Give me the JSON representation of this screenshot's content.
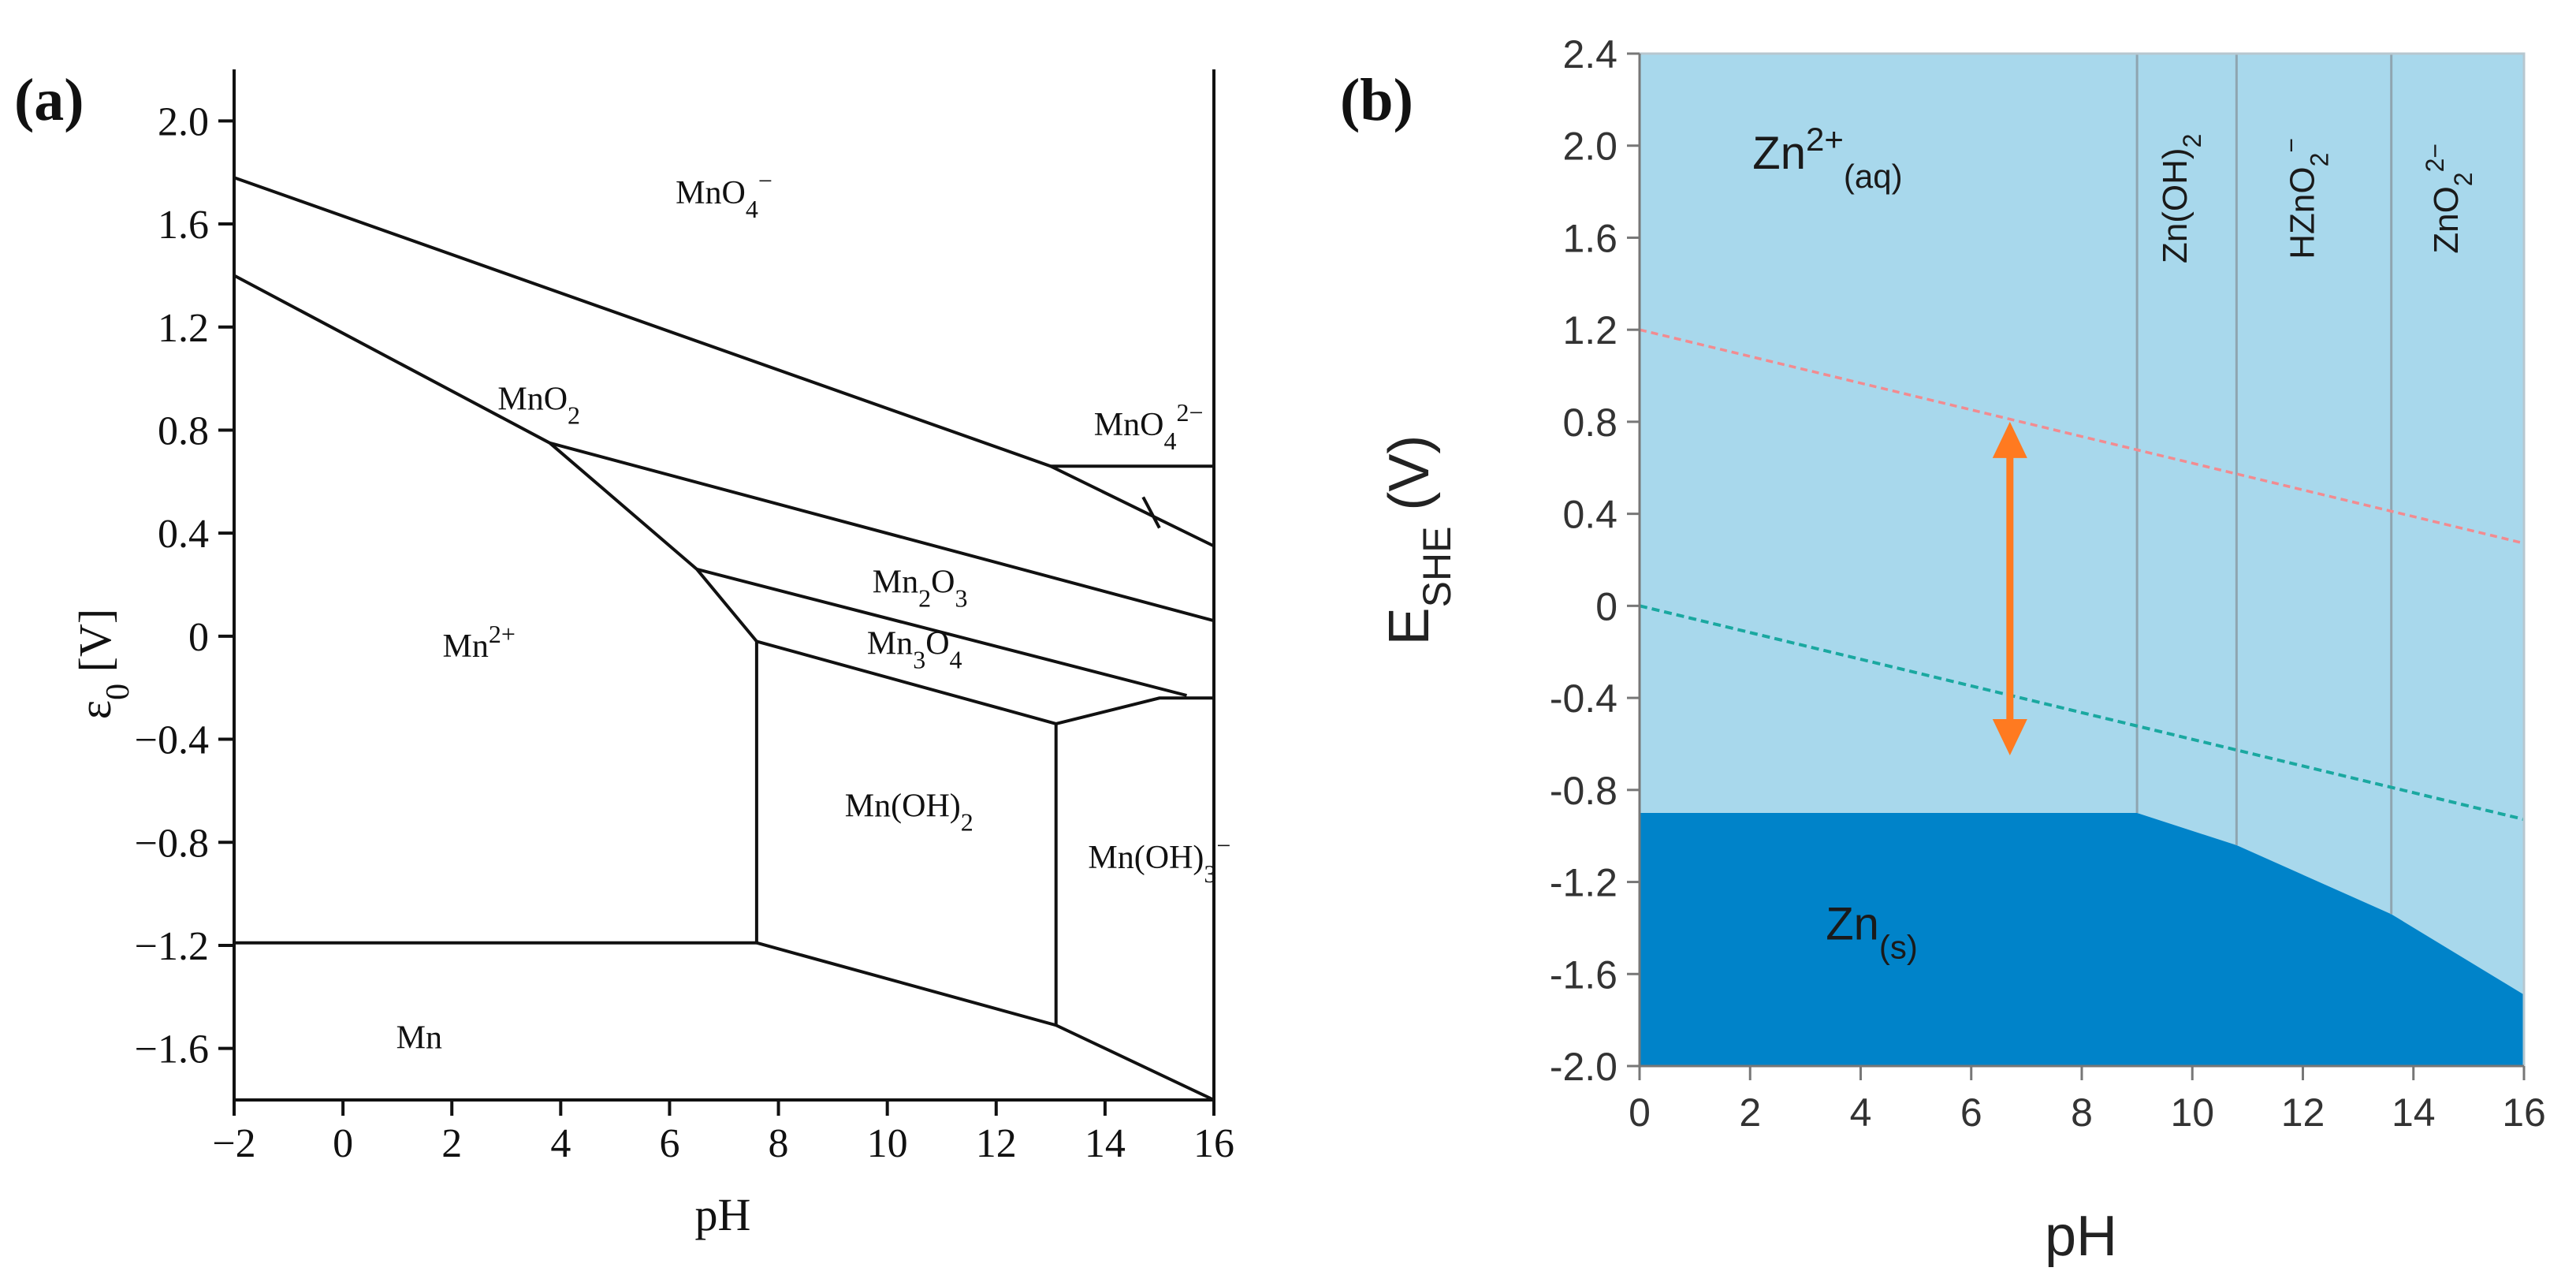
{
  "chart_data": [
    {
      "panel_label": "(a)",
      "type": "line",
      "title": "",
      "xlabel": "pH",
      "ylabel": "ε",
      "ylabel_sub": "0",
      "ylabel_unit": " [V]",
      "xlim": [
        -2,
        16
      ],
      "ylim": [
        -1.8,
        2.2
      ],
      "xticks": [
        "−2",
        "0",
        "2",
        "4",
        "6",
        "8",
        "10",
        "12",
        "14",
        "16"
      ],
      "yticks": [
        "2.0",
        "1.6",
        "1.2",
        "0.8",
        "0.4",
        "0",
        "−0.4",
        "−0.8",
        "−1.2",
        "−1.6"
      ],
      "boundaries": [
        {
          "name": "MnO4-/MnO2",
          "points": [
            [
              -2,
              1.78
            ],
            [
              13.0,
              0.66
            ],
            [
              16,
              0.35
            ]
          ]
        },
        {
          "name": "MnO2/Mn2+",
          "points": [
            [
              -2,
              1.4
            ],
            [
              3.8,
              0.75
            ],
            [
              6.5,
              0.26
            ],
            [
              7.6,
              -0.02
            ]
          ]
        },
        {
          "name": "MnO2/Mn2O3",
          "points": [
            [
              3.8,
              0.75
            ],
            [
              16,
              0.06
            ]
          ]
        },
        {
          "name": "Mn2O3/Mn2+",
          "points": [
            [
              6.5,
              0.26
            ]
          ]
        },
        {
          "name": "Mn2O3/Mn3O4",
          "points": [
            [
              6.5,
              0.26
            ],
            [
              15.5,
              -0.23
            ]
          ]
        },
        {
          "name": "Mn3O4/Mn(OH)2",
          "points": [
            [
              7.6,
              -0.02
            ],
            [
              13.1,
              -0.34
            ],
            [
              15.0,
              -0.24
            ],
            [
              16,
              -0.24
            ]
          ]
        },
        {
          "name": "Mn2+/Mn(OH)2",
          "points": [
            [
              7.6,
              -0.02
            ],
            [
              7.6,
              -1.19
            ]
          ]
        },
        {
          "name": "Mn(OH)2/Mn(OH)3-",
          "points": [
            [
              13.1,
              -0.34
            ],
            [
              13.1,
              -1.51
            ]
          ]
        },
        {
          "name": "Mn2+/Mn",
          "points": [
            [
              -2,
              -1.19
            ],
            [
              7.6,
              -1.19
            ]
          ]
        },
        {
          "name": "Mn(OH)2/Mn",
          "points": [
            [
              7.6,
              -1.19
            ],
            [
              13.1,
              -1.51
            ],
            [
              16,
              -1.8
            ]
          ]
        },
        {
          "name": "MnO4-/MnO4 2-",
          "points": [
            [
              13.0,
              0.66
            ],
            [
              16,
              0.66
            ]
          ]
        },
        {
          "name": "MnO4 2- pointer",
          "points": [
            [
              14.7,
              0.54
            ],
            [
              15.0,
              0.42
            ]
          ]
        }
      ],
      "region_labels": [
        {
          "base": "MnO",
          "sub": "4",
          "sup": "−",
          "x": 7.0,
          "y": 1.68
        },
        {
          "base": "MnO",
          "sub": "2",
          "sup": "",
          "x": 3.6,
          "y": 0.88
        },
        {
          "base": "MnO",
          "sub": "4",
          "sup": "2−",
          "x": 14.8,
          "y": 0.78
        },
        {
          "base": "Mn",
          "sub": "2",
          "base2": "O",
          "sub2": "3",
          "x": 10.6,
          "y": 0.17
        },
        {
          "base": "Mn",
          "sub": "3",
          "base2": "O",
          "sub2": "4",
          "x": 10.5,
          "y": -0.07
        },
        {
          "base": "Mn",
          "sub": "",
          "sup": "2+",
          "x": 2.5,
          "y": -0.08
        },
        {
          "base": "Mn(OH)",
          "sub": "2",
          "sup": "",
          "x": 10.4,
          "y": -0.7
        },
        {
          "base": "Mn(OH)",
          "sub": "3",
          "sup": "−",
          "x": 15.0,
          "y": -0.9
        },
        {
          "base": "Mn",
          "sub": "",
          "sup": "",
          "x": 1.4,
          "y": -1.6
        }
      ]
    },
    {
      "panel_label": "(b)",
      "type": "area",
      "title": "",
      "xlabel": "pH",
      "ylabel": "E",
      "ylabel_sub": "SHE",
      "ylabel_unit": " (V)",
      "xlim": [
        0,
        16
      ],
      "ylim": [
        -2.0,
        2.4
      ],
      "xticks": [
        "0",
        "2",
        "4",
        "6",
        "8",
        "10",
        "12",
        "14",
        "16"
      ],
      "yticks": [
        "2.4",
        "2.0",
        "1.6",
        "1.2",
        "0.8",
        "0.4",
        "0",
        "-0.4",
        "-0.8",
        "-1.2",
        "-1.6",
        "-2.0"
      ],
      "zn_solid_boundary": [
        [
          0,
          -0.9
        ],
        [
          9.0,
          -0.9
        ],
        [
          10.8,
          -1.04
        ],
        [
          13.6,
          -1.34
        ],
        [
          16,
          -1.69
        ]
      ],
      "species_dividers_ph": [
        9.0,
        10.8,
        13.6
      ],
      "oxygen_line": {
        "intercept": 1.2,
        "slope": -0.058
      },
      "hydrogen_line": {
        "intercept": 0.0,
        "slope": -0.058
      },
      "window_arrow": {
        "x": 6.7,
        "y1": 0.8,
        "y2": -0.65
      },
      "species": [
        {
          "base": "Zn",
          "sup": "2+",
          "sub": "(aq)",
          "x": 3.4,
          "y": 1.9,
          "rotated": false
        },
        {
          "base": "Zn(OH)",
          "sub": "2",
          "sup": "",
          "x": 9.9,
          "y": 1.77,
          "rotated": true
        },
        {
          "base": "HZnO",
          "sub": "2",
          "sup": "−",
          "x": 12.2,
          "y": 1.77,
          "rotated": true
        },
        {
          "base": "ZnO",
          "sub": "2",
          "sup": "2−",
          "x": 14.8,
          "y": 1.77,
          "rotated": true
        },
        {
          "base": "Zn",
          "sub": "(s)",
          "sup": "",
          "x": 4.2,
          "y": -1.45,
          "rotated": false
        }
      ],
      "colors": {
        "aqueous": "#a8d8ec",
        "solid": "#0083c9",
        "oxygen_line": "#f28b90",
        "hydrogen_line": "#1aa8a0",
        "arrow": "#ff7a20",
        "divider": "#8fa5b0"
      }
    }
  ]
}
